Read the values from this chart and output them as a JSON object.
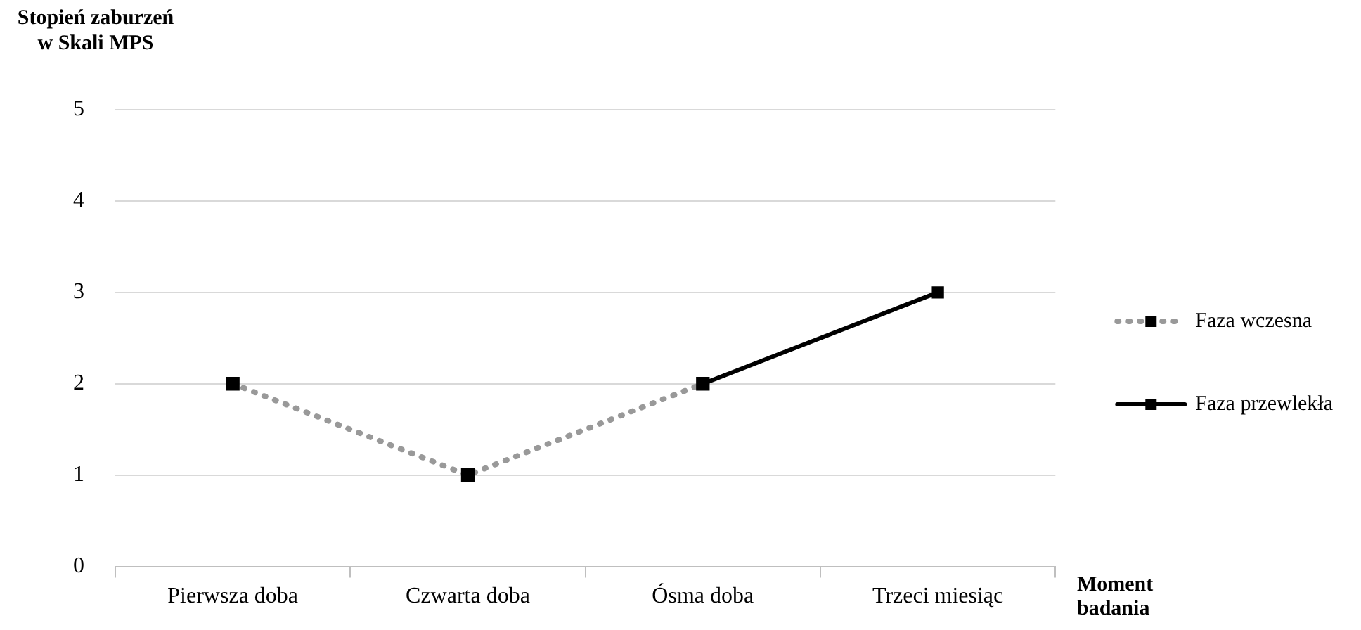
{
  "chart_data": {
    "type": "line",
    "ylabel": "Stopień zaburzeń w Skali MPS",
    "xlabel": "Moment badania",
    "categories": [
      "Pierwsza doba",
      "Czwarta doba",
      "Ósma doba",
      "Trzeci miesiąc"
    ],
    "series": [
      {
        "name": "Faza wczesna",
        "color": "#999999",
        "values": [
          2,
          1,
          2,
          null
        ],
        "line_style": "dotted"
      },
      {
        "name": "Faza przewlekła",
        "color": "#000000",
        "values": [
          null,
          null,
          2,
          3
        ],
        "line_style": "solid"
      }
    ],
    "ylim": [
      0,
      5
    ],
    "yticks": [
      0,
      1,
      2,
      3,
      4,
      5
    ],
    "grid": "y",
    "legend": "right",
    "marker": "square"
  }
}
